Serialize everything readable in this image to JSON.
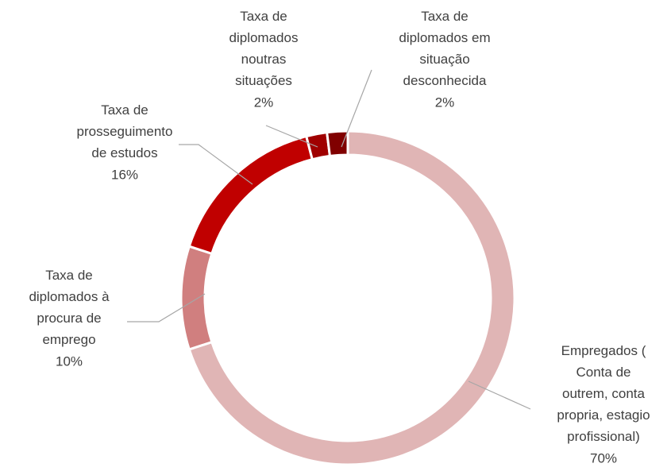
{
  "chart_data": {
    "type": "donut",
    "categories": [
      "Empregados ( Conta de outrem, conta propria, estagio profissional)",
      "Taxa de diplomados à procura de emprego",
      "Taxa de prosseguimento de estudos",
      "Taxa de diplomados noutras situações",
      "Taxa de diplomados em situação desconhecida"
    ],
    "values": [
      70,
      10,
      16,
      2,
      2
    ],
    "value_labels": [
      "70%",
      "10%",
      "16%",
      "2%",
      "2%"
    ],
    "colors": [
      "#e0b5b5",
      "#d07f7f",
      "#c00000",
      "#a00000",
      "#800000"
    ]
  }
}
